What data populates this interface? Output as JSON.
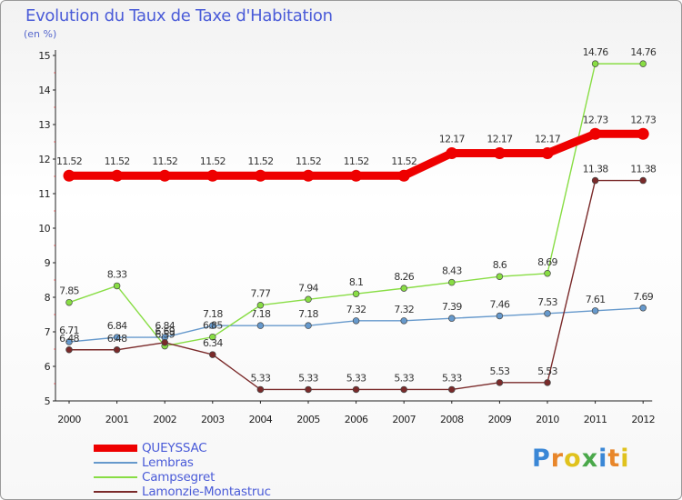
{
  "header": {
    "title": "Evolution du Taux de Taxe d'Habitation",
    "subtitle": "(en %)"
  },
  "logo": {
    "letters": [
      "P",
      "r",
      "o",
      "x",
      "i",
      "t",
      "i"
    ],
    "colors": [
      "#3a87d6",
      "#e8862a",
      "#e0c21d",
      "#4aa84a",
      "#3a87d6",
      "#e8862a",
      "#e0c21d"
    ]
  },
  "chart_data": {
    "type": "line",
    "title": "Evolution du Taux de Taxe d'Habitation",
    "subtitle": "(en %)",
    "xlabel": "",
    "ylabel": "",
    "ylim": [
      5,
      15
    ],
    "yticks": [
      "5",
      "6",
      "7",
      "8",
      "9",
      "10",
      "11",
      "12",
      "13",
      "14",
      "15"
    ],
    "categories": [
      "2000",
      "2001",
      "2002",
      "2003",
      "2004",
      "2005",
      "2006",
      "2007",
      "2008",
      "2009",
      "2010",
      "2011",
      "2012"
    ],
    "grid": false,
    "legend_position": "bottom-left",
    "series": [
      {
        "name": "QUEYSSAC",
        "color": "#ee0000",
        "values": [
          11.52,
          11.52,
          11.52,
          11.52,
          11.52,
          11.52,
          11.52,
          11.52,
          12.17,
          12.17,
          12.17,
          12.73,
          12.73
        ],
        "labels": [
          "11.52",
          "11.52",
          "11.52",
          "11.52",
          "11.52",
          "11.52",
          "11.52",
          "11.52",
          "12.17",
          "12.17",
          "12.17",
          "12.73",
          "12.73"
        ]
      },
      {
        "name": "Lembras",
        "color": "#6699cc",
        "values": [
          6.71,
          6.84,
          6.84,
          7.18,
          7.18,
          7.18,
          7.32,
          7.32,
          7.39,
          7.46,
          7.53,
          7.61,
          7.69
        ],
        "labels": [
          "6.71",
          "6.84",
          "6.84",
          "7.18",
          "7.18",
          "7.18",
          "7.32",
          "7.32",
          "7.39",
          "7.46",
          "7.53",
          "7.61",
          "7.69"
        ]
      },
      {
        "name": "Campsegret",
        "color": "#88dd44",
        "values": [
          7.85,
          8.33,
          6.59,
          6.85,
          7.77,
          7.94,
          8.1,
          8.26,
          8.43,
          8.6,
          8.69,
          14.76,
          14.76
        ],
        "labels": [
          "7.85",
          "8.33",
          "6.59",
          "6.85",
          "7.77",
          "7.94",
          "8.1",
          "8.26",
          "8.43",
          "8.6",
          "8.69",
          "14.76",
          "14.76"
        ]
      },
      {
        "name": "Lamonzie-Montastruc",
        "color": "#7a2a2a",
        "values": [
          6.48,
          6.48,
          6.69,
          6.34,
          5.33,
          5.33,
          5.33,
          5.33,
          5.33,
          5.53,
          5.53,
          11.38,
          11.38
        ],
        "labels": [
          "6.48",
          "6.48",
          "6.69",
          "6.34",
          "5.33",
          "5.33",
          "5.33",
          "5.33",
          "5.33",
          "5.53",
          "5.53",
          "11.38",
          "11.38"
        ]
      }
    ]
  }
}
